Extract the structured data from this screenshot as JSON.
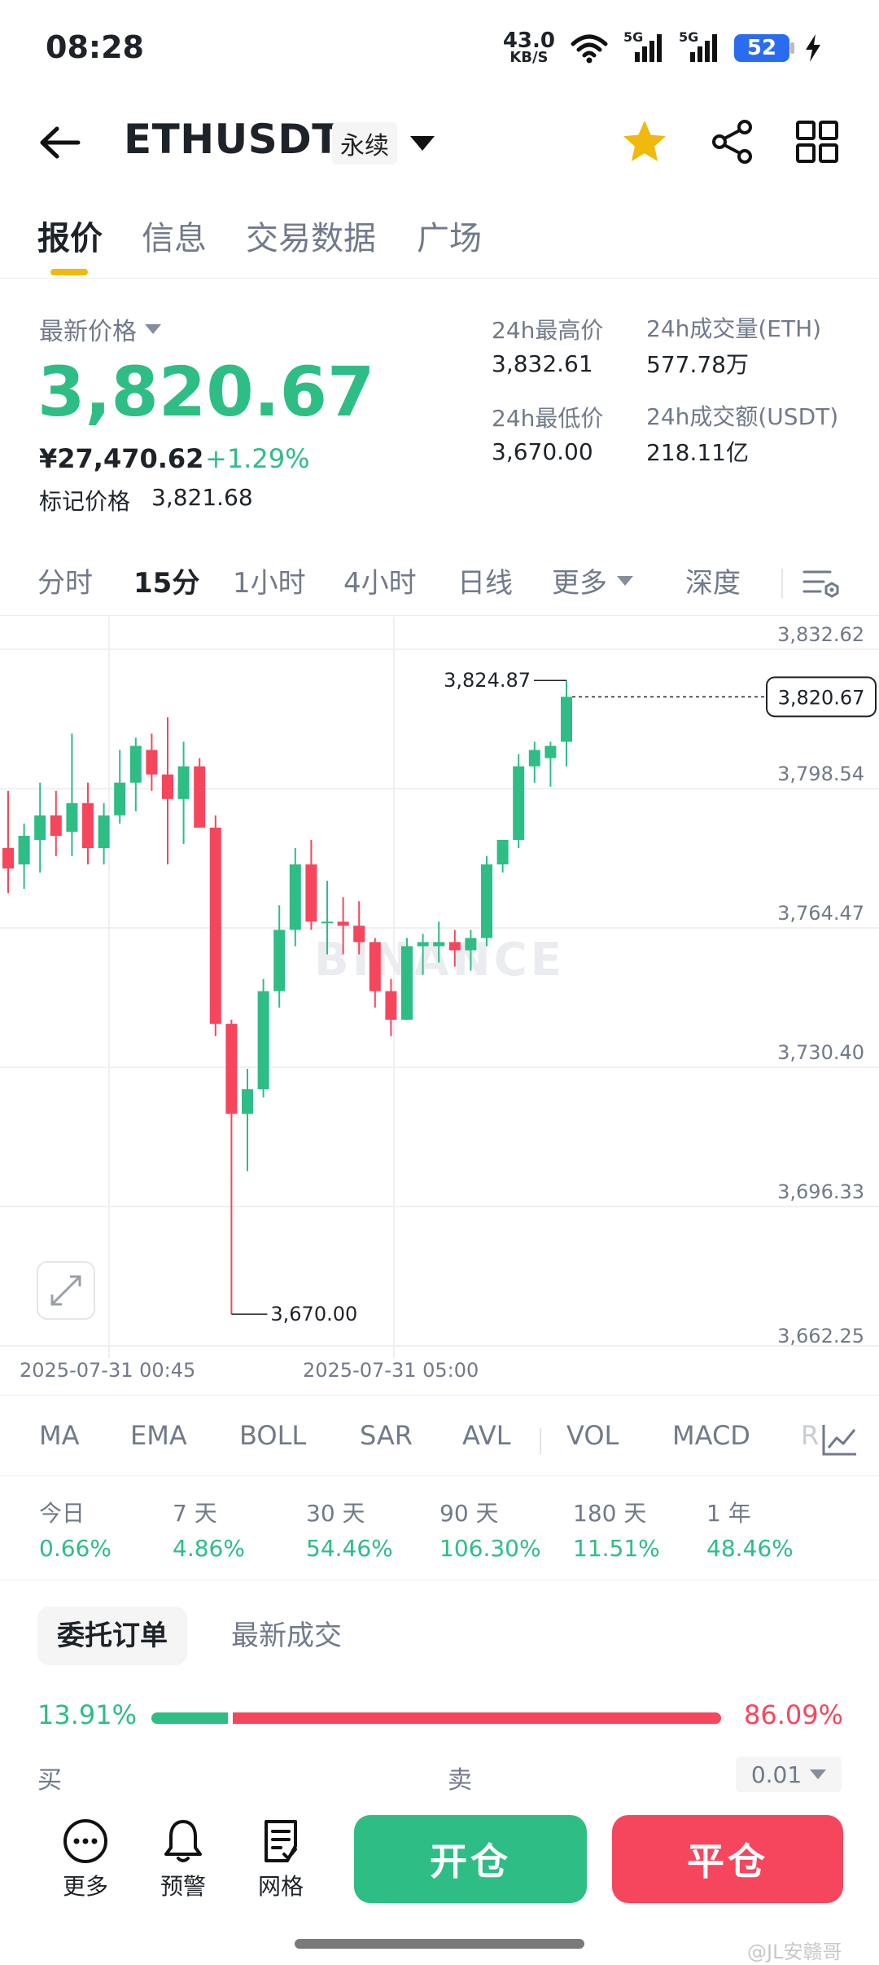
{
  "status_bar": {
    "time": "08:28",
    "net_speed_value": "43.0",
    "net_speed_unit": "KB/S",
    "signal_1": "5G",
    "signal_2": "5G",
    "battery": "52"
  },
  "header": {
    "pair": "ETHUSDT",
    "contract_type": "永续",
    "icons": [
      "back-arrow-icon",
      "chevron-down-icon",
      "star-icon",
      "share-icon",
      "grid-icon"
    ],
    "star_color": "#f0b90b"
  },
  "tabs": [
    {
      "label": "报价",
      "active": true
    },
    {
      "label": "信息",
      "active": false
    },
    {
      "label": "交易数据",
      "active": false
    },
    {
      "label": "广场",
      "active": false
    }
  ],
  "ticker": {
    "last_price_label": "最新价格",
    "last_price": "3,820.67",
    "cny_price": "¥27,470.62",
    "change_pct": "+1.29%",
    "mark_price_label": "标记价格",
    "mark_price": "3,821.68",
    "high_label": "24h最高价",
    "high": "3,832.61",
    "low_label": "24h最低价",
    "low": "3,670.00",
    "volume_label": "24h成交量(ETH)",
    "volume": "577.78万",
    "turnover_label": "24h成交额(USDT)",
    "turnover": "218.11亿",
    "up_color": "#2ebd85",
    "down_color": "#f6465d"
  },
  "intervals": [
    {
      "label": "分时",
      "active": false
    },
    {
      "label": "15分",
      "active": true
    },
    {
      "label": "1小时",
      "active": false
    },
    {
      "label": "4小时",
      "active": false
    },
    {
      "label": "日线",
      "active": false
    },
    {
      "label": "更多",
      "active": false
    },
    {
      "label": "深度",
      "active": false
    }
  ],
  "chart_data": {
    "type": "candlestick",
    "title": "",
    "watermark": "BINANCE",
    "y_ticks": [
      "3,832.62",
      "3,798.54",
      "3,764.47",
      "3,730.40",
      "3,696.33",
      "3,662.25"
    ],
    "ylim": [
      3662.25,
      3832.62
    ],
    "x_ticks": [
      "2025-07-31 00:45",
      "2025-07-31 05:00"
    ],
    "current_price_label": "3,820.67",
    "high_marker": "3,824.87",
    "low_marker": "3,670.00",
    "candles": [
      {
        "o": 3784,
        "h": 3798,
        "l": 3773,
        "c": 3779
      },
      {
        "o": 3780,
        "h": 3790,
        "l": 3774,
        "c": 3787
      },
      {
        "o": 3786,
        "h": 3800,
        "l": 3778,
        "c": 3792
      },
      {
        "o": 3792,
        "h": 3798,
        "l": 3782,
        "c": 3787
      },
      {
        "o": 3788,
        "h": 3812,
        "l": 3782,
        "c": 3795
      },
      {
        "o": 3795,
        "h": 3800,
        "l": 3780,
        "c": 3784
      },
      {
        "o": 3784,
        "h": 3795,
        "l": 3780,
        "c": 3792
      },
      {
        "o": 3792,
        "h": 3808,
        "l": 3790,
        "c": 3800
      },
      {
        "o": 3800,
        "h": 3811,
        "l": 3793,
        "c": 3809
      },
      {
        "o": 3808,
        "h": 3812,
        "l": 3798,
        "c": 3802
      },
      {
        "o": 3802,
        "h": 3816,
        "l": 3780,
        "c": 3796
      },
      {
        "o": 3796,
        "h": 3810,
        "l": 3785,
        "c": 3804
      },
      {
        "o": 3804,
        "h": 3806,
        "l": 3790,
        "c": 3789
      },
      {
        "o": 3789,
        "h": 3792,
        "l": 3738,
        "c": 3741
      },
      {
        "o": 3741,
        "h": 3742,
        "l": 3670,
        "c": 3719
      },
      {
        "o": 3719,
        "h": 3730,
        "l": 3705,
        "c": 3725
      },
      {
        "o": 3725,
        "h": 3752,
        "l": 3723,
        "c": 3749
      },
      {
        "o": 3749,
        "h": 3770,
        "l": 3745,
        "c": 3764
      },
      {
        "o": 3764,
        "h": 3784,
        "l": 3760,
        "c": 3780
      },
      {
        "o": 3780,
        "h": 3786,
        "l": 3764,
        "c": 3766
      },
      {
        "o": 3766,
        "h": 3776,
        "l": 3758,
        "c": 3766
      },
      {
        "o": 3766,
        "h": 3772,
        "l": 3758,
        "c": 3765
      },
      {
        "o": 3765,
        "h": 3771,
        "l": 3758,
        "c": 3761
      },
      {
        "o": 3761,
        "h": 3762,
        "l": 3745,
        "c": 3749
      },
      {
        "o": 3749,
        "h": 3752,
        "l": 3738,
        "c": 3742
      },
      {
        "o": 3742,
        "h": 3762,
        "l": 3742,
        "c": 3760
      },
      {
        "o": 3760,
        "h": 3763,
        "l": 3753,
        "c": 3761
      },
      {
        "o": 3760,
        "h": 3766,
        "l": 3756,
        "c": 3761
      },
      {
        "o": 3761,
        "h": 3764,
        "l": 3755,
        "c": 3759
      },
      {
        "o": 3759,
        "h": 3764,
        "l": 3754,
        "c": 3762
      },
      {
        "o": 3762,
        "h": 3782,
        "l": 3760,
        "c": 3780
      },
      {
        "o": 3780,
        "h": 3786,
        "l": 3778,
        "c": 3786
      },
      {
        "o": 3786,
        "h": 3807,
        "l": 3784,
        "c": 3804
      },
      {
        "o": 3804,
        "h": 3810,
        "l": 3800,
        "c": 3808
      },
      {
        "o": 3806,
        "h": 3810,
        "l": 3799,
        "c": 3809
      },
      {
        "o": 3810,
        "h": 3825,
        "l": 3804,
        "c": 3821
      }
    ]
  },
  "indicators": [
    "MA",
    "EMA",
    "BOLL",
    "SAR",
    "AVL",
    "VOL",
    "MACD",
    "R"
  ],
  "performance": [
    {
      "label": "今日",
      "value": "0.66%"
    },
    {
      "label": "7 天",
      "value": "4.86%"
    },
    {
      "label": "30 天",
      "value": "54.46%"
    },
    {
      "label": "90 天",
      "value": "106.30%"
    },
    {
      "label": "180 天",
      "value": "11.51%"
    },
    {
      "label": "1 年",
      "value": "48.46%"
    }
  ],
  "order_tabs": [
    {
      "label": "委托订单",
      "active": true
    },
    {
      "label": "最新成交",
      "active": false
    }
  ],
  "order_ratio": {
    "buy_pct": "13.91%",
    "sell_pct": "86.09%",
    "buy_fraction": 0.1391
  },
  "order_book": {
    "buy_label": "买",
    "sell_label": "卖",
    "precision": "0.01"
  },
  "bottom_bar": {
    "more": "更多",
    "alert": "预警",
    "grid": "网格",
    "open": "开仓",
    "close": "平仓"
  },
  "watermark_text": "@JL安赣哥"
}
